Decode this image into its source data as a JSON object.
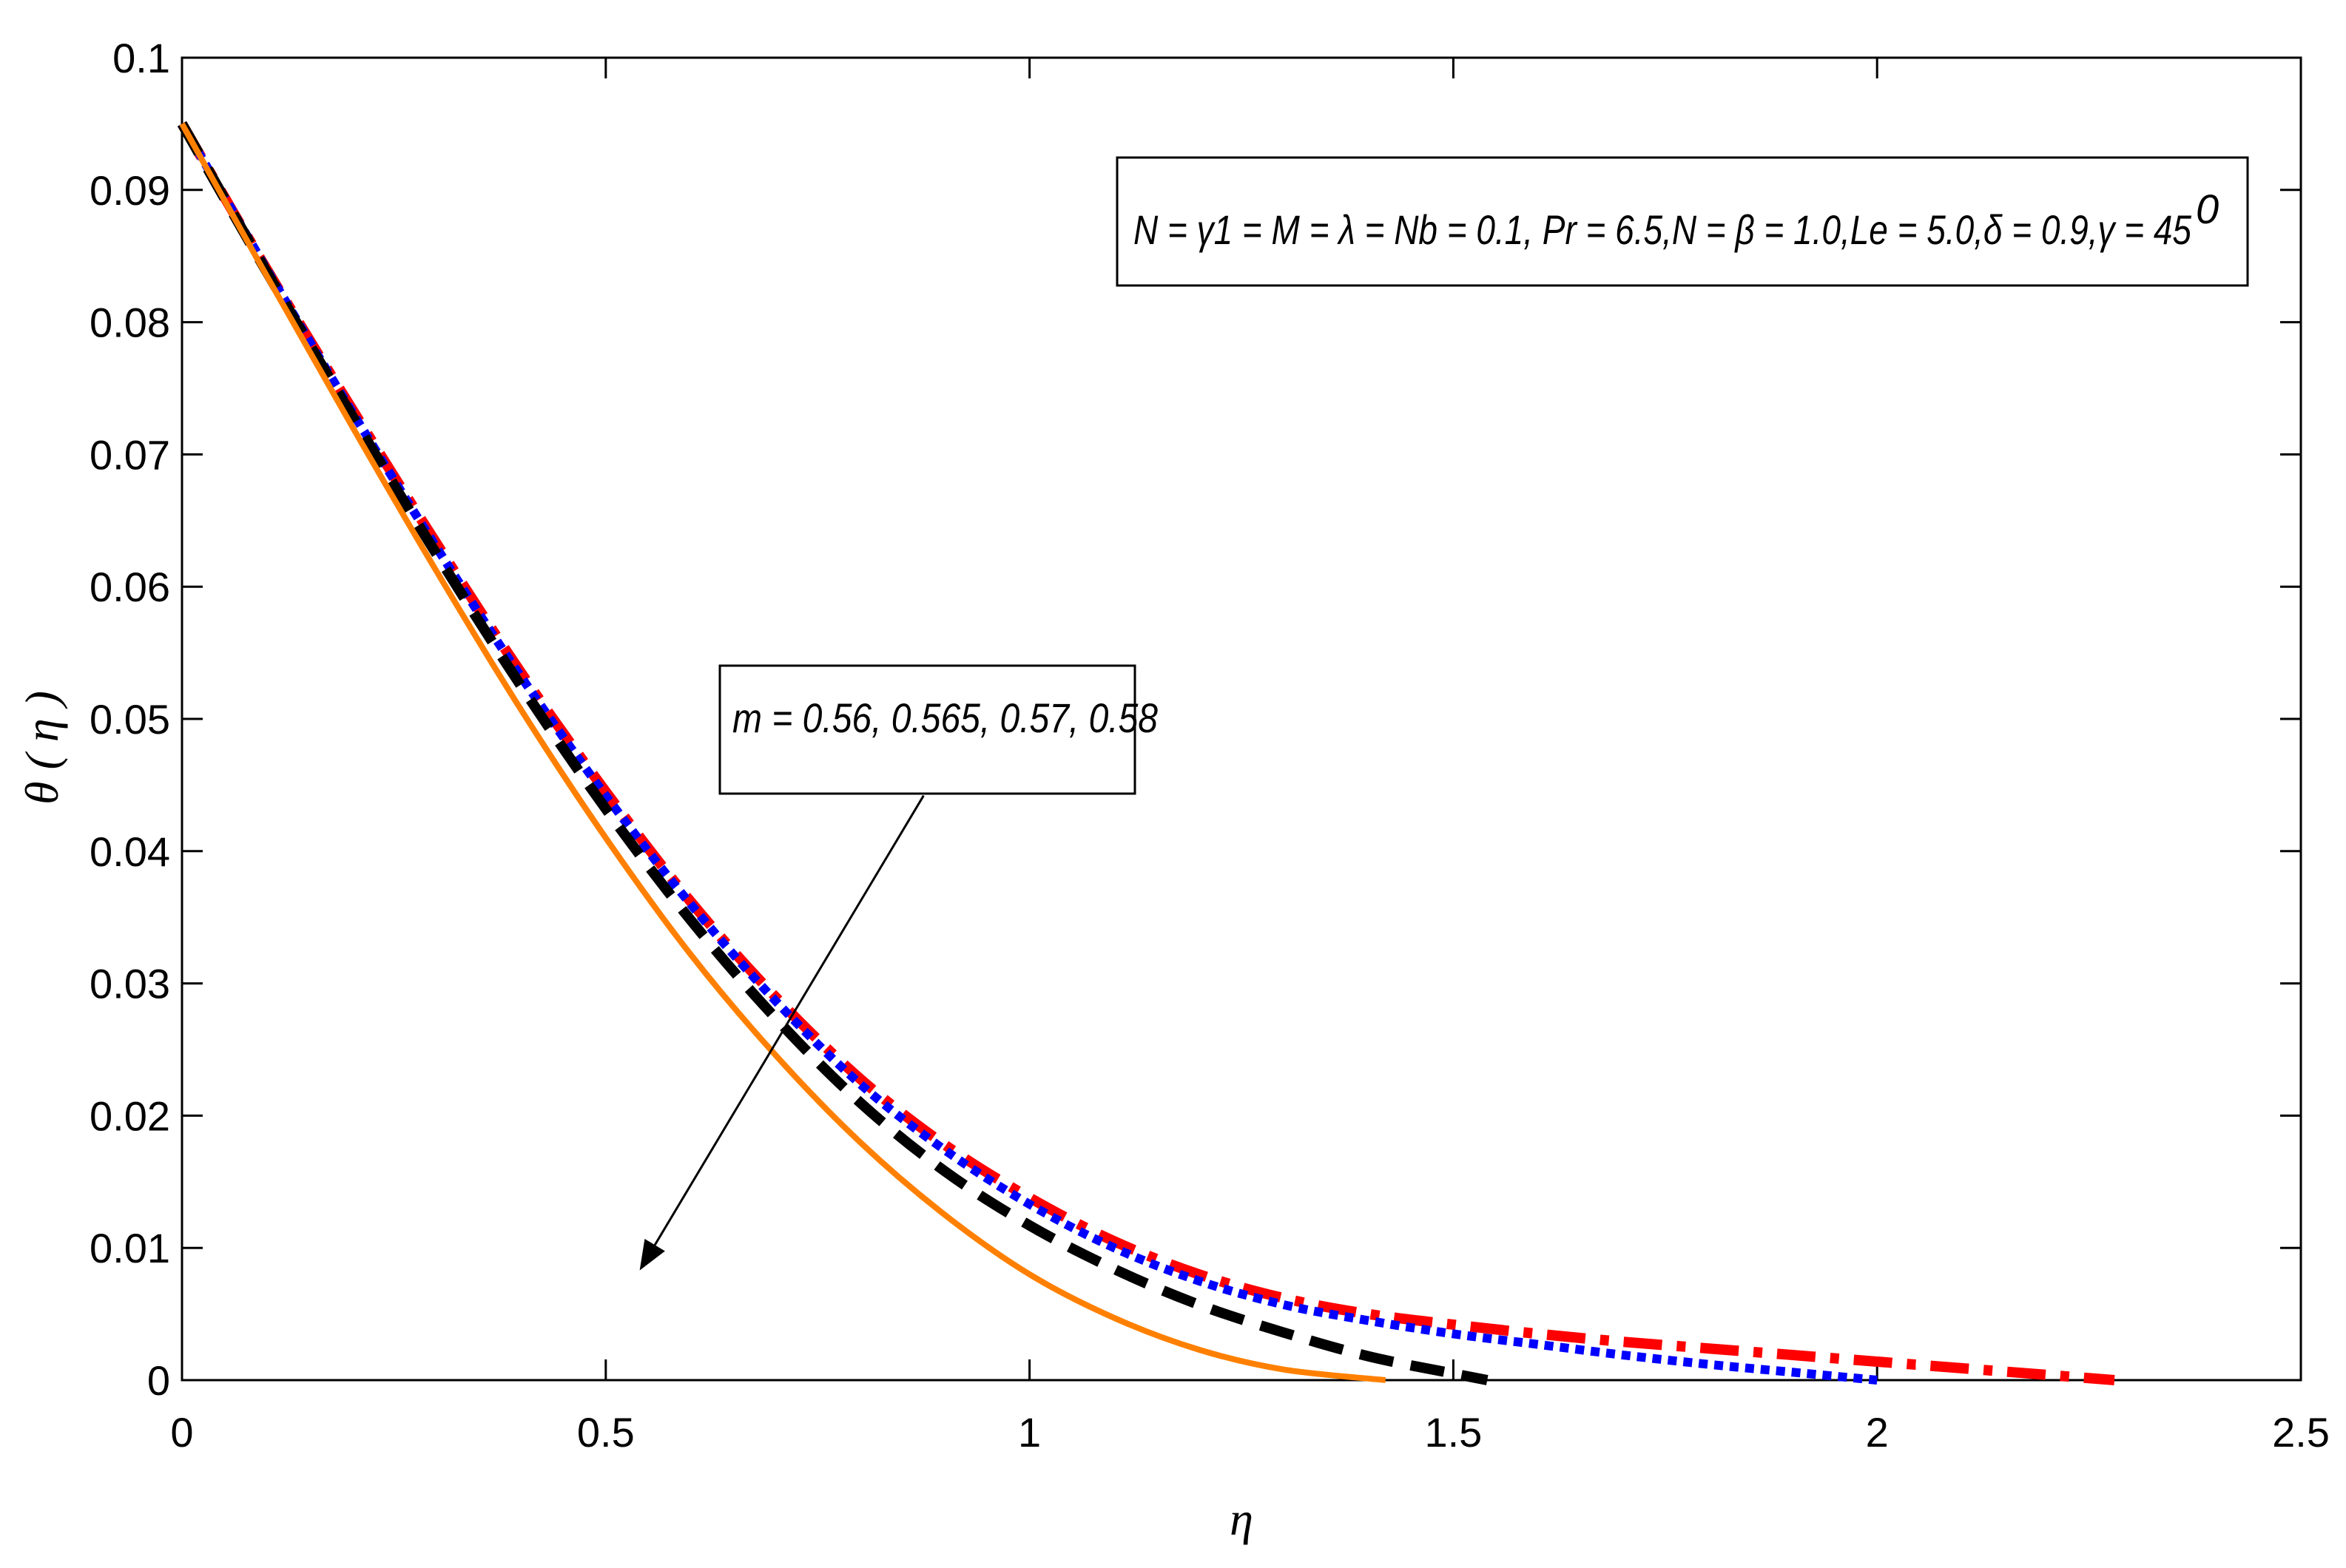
{
  "chart_data": {
    "type": "line",
    "title": "",
    "xlabel": "η",
    "ylabel": "θ ( η )",
    "xlim": [
      0,
      2.5
    ],
    "ylim": [
      0,
      0.1
    ],
    "xticks": [
      0,
      0.5,
      1,
      1.5,
      2,
      2.5
    ],
    "xtick_labels": [
      "0",
      "0.5",
      "1",
      "1.5",
      "2",
      "2.5"
    ],
    "yticks": [
      0,
      0.01,
      0.02,
      0.03,
      0.04,
      0.05,
      0.06,
      0.07,
      0.08,
      0.09,
      0.1
    ],
    "ytick_labels": [
      "0",
      "0.01",
      "0.02",
      "0.03",
      "0.04",
      "0.05",
      "0.06",
      "0.07",
      "0.08",
      "0.09",
      "0.1"
    ],
    "grid": false,
    "parameter_box": "N = γ1 = M = λ = Nb = 0.1, Pr = 6.5,N = β = 1.0,Le = 5.0,δ = 0.9,γ = 45",
    "parameter_box_superscript": "0",
    "annotation": {
      "text": "m = 0.56, 0.565, 0.57, 0.58",
      "arrow_from": [
        0.875,
        0.0442
      ],
      "arrow_to": [
        0.54,
        0.0083
      ]
    },
    "series": [
      {
        "color": "#ff0000",
        "style": "dashdot",
        "x": [
          0,
          0.1,
          0.2,
          0.3,
          0.4,
          0.5,
          0.6,
          0.7,
          0.8,
          0.9,
          1.0,
          1.1,
          1.2,
          1.3,
          1.4,
          1.5,
          1.6,
          1.7,
          1.8,
          1.9,
          2.0,
          2.1,
          2.2,
          2.28
        ],
        "y": [
          0.095,
          0.084,
          0.0735,
          0.0633,
          0.0535,
          0.0445,
          0.0362,
          0.029,
          0.0228,
          0.0178,
          0.0138,
          0.0105,
          0.008,
          0.0062,
          0.005,
          0.0042,
          0.0035,
          0.0029,
          0.0024,
          0.0019,
          0.0014,
          0.0009,
          0.0004,
          0.0
        ]
      },
      {
        "color": "#0000ff",
        "style": "dotted",
        "x": [
          0,
          0.1,
          0.2,
          0.3,
          0.4,
          0.5,
          0.6,
          0.7,
          0.8,
          0.9,
          1.0,
          1.1,
          1.2,
          1.3,
          1.4,
          1.5,
          1.6,
          1.7,
          1.8,
          1.9,
          2.0
        ],
        "y": [
          0.095,
          0.084,
          0.0733,
          0.063,
          0.0532,
          0.0442,
          0.036,
          0.0287,
          0.0224,
          0.0174,
          0.0133,
          0.01,
          0.0075,
          0.0057,
          0.0045,
          0.0035,
          0.0027,
          0.0019,
          0.0012,
          0.0006,
          0.0
        ]
      },
      {
        "color": "#000000",
        "style": "dashed",
        "x": [
          0,
          0.1,
          0.2,
          0.3,
          0.4,
          0.5,
          0.6,
          0.7,
          0.8,
          0.9,
          1.0,
          1.1,
          1.2,
          1.3,
          1.4,
          1.5,
          1.54
        ],
        "y": [
          0.095,
          0.0838,
          0.073,
          0.0625,
          0.0525,
          0.0432,
          0.0348,
          0.0274,
          0.021,
          0.0158,
          0.0117,
          0.0084,
          0.0057,
          0.0036,
          0.0018,
          0.0005,
          0.0
        ]
      },
      {
        "color": "#ff8000",
        "style": "solid",
        "x": [
          0,
          0.1,
          0.2,
          0.3,
          0.4,
          0.5,
          0.6,
          0.7,
          0.8,
          0.9,
          1.0,
          1.1,
          1.2,
          1.3,
          1.42
        ],
        "y": [
          0.095,
          0.0835,
          0.0722,
          0.0612,
          0.0507,
          0.041,
          0.0322,
          0.0246,
          0.018,
          0.0125,
          0.008,
          0.0047,
          0.0023,
          0.0008,
          0.0
        ]
      }
    ]
  }
}
